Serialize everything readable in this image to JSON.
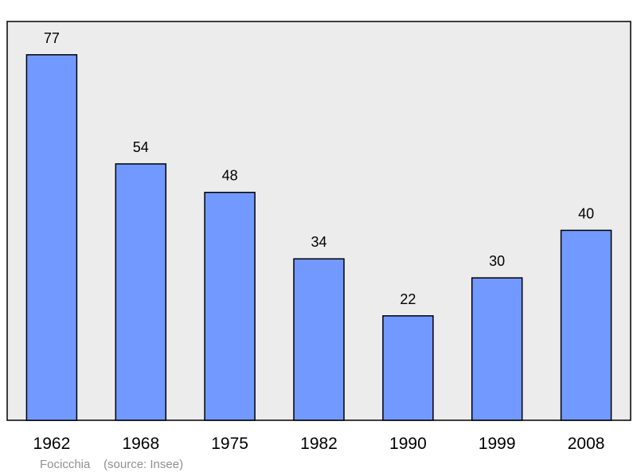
{
  "chart_data": {
    "type": "bar",
    "categories": [
      "1962",
      "1968",
      "1975",
      "1982",
      "1990",
      "1999",
      "2008"
    ],
    "values": [
      77,
      54,
      48,
      34,
      22,
      30,
      40
    ],
    "title": "",
    "xlabel": "",
    "ylabel": "",
    "ylim": [
      0,
      84
    ],
    "grid": false,
    "legend": "none",
    "colors": {
      "bar": "#7299ff",
      "bar_stroke": "#000000",
      "plot_bg": "#ececec",
      "frame": "#000000"
    }
  },
  "footer": {
    "author": "Focicchia",
    "source": "(source: Insee)"
  }
}
